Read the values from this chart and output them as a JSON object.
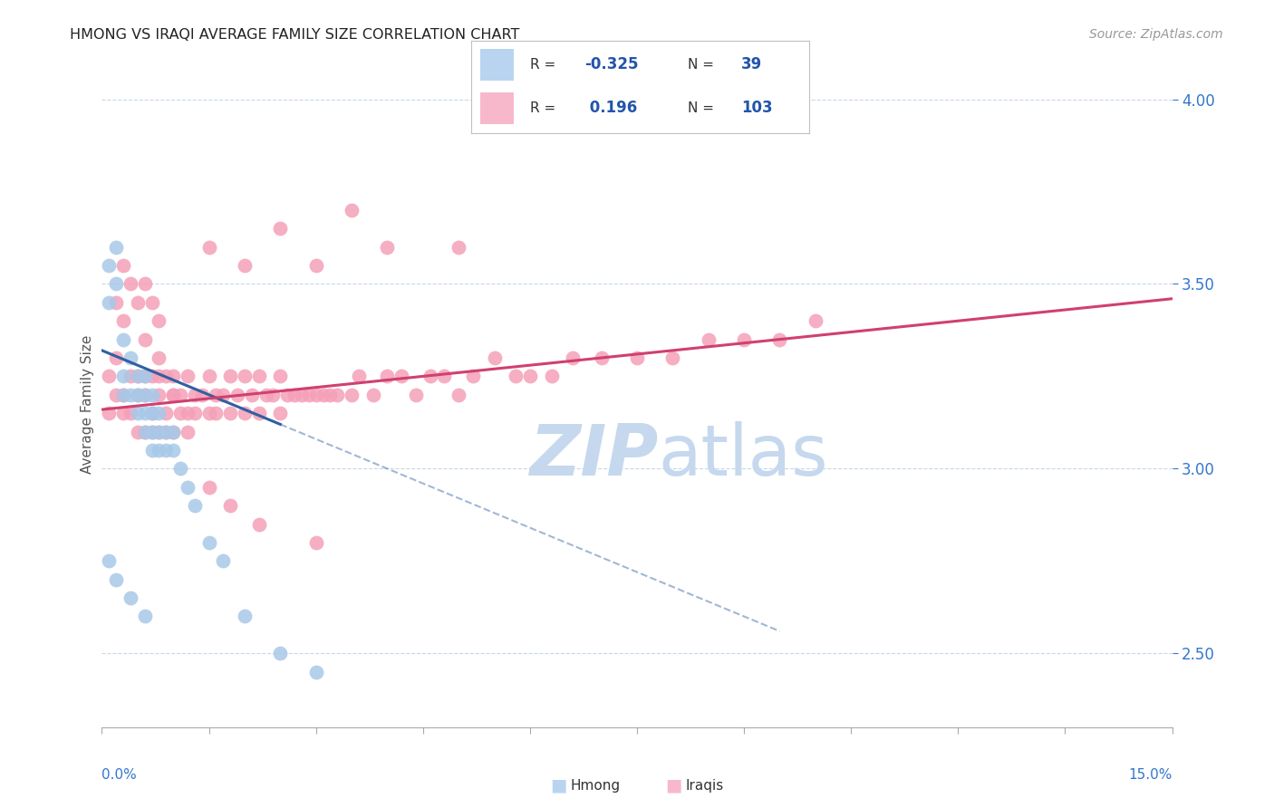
{
  "title": "HMONG VS IRAQI AVERAGE FAMILY SIZE CORRELATION CHART",
  "source": "Source: ZipAtlas.com",
  "ylabel": "Average Family Size",
  "right_yticks": [
    2.5,
    3.0,
    3.5,
    4.0
  ],
  "xmin": 0.0,
  "xmax": 0.15,
  "ymin": 2.3,
  "ymax": 4.05,
  "hmong_color": "#a8c8e8",
  "iraqi_color": "#f4a0b8",
  "hmong_line_color": "#3060a0",
  "iraqi_line_color": "#d04070",
  "legend_box_hmong": "#b8d4f0",
  "legend_box_iraqi": "#f8b8cc",
  "watermark_color": "#c5d8ee",
  "hmong_line_x0": 0.0,
  "hmong_line_y0": 3.32,
  "hmong_line_x1": 0.025,
  "hmong_line_y1": 3.12,
  "hmong_line_solid_end": 0.025,
  "hmong_line_dash_end": 0.095,
  "iraqi_line_x0": 0.0,
  "iraqi_line_y0": 3.16,
  "iraqi_line_x1": 0.15,
  "iraqi_line_y1": 3.46,
  "hmong_x": [
    0.001,
    0.001,
    0.002,
    0.002,
    0.003,
    0.003,
    0.003,
    0.004,
    0.004,
    0.005,
    0.005,
    0.005,
    0.006,
    0.006,
    0.006,
    0.006,
    0.007,
    0.007,
    0.007,
    0.007,
    0.008,
    0.008,
    0.008,
    0.009,
    0.009,
    0.01,
    0.01,
    0.011,
    0.012,
    0.013,
    0.015,
    0.017,
    0.02,
    0.025,
    0.03,
    0.001,
    0.002,
    0.004,
    0.006
  ],
  "hmong_y": [
    3.55,
    3.45,
    3.6,
    3.5,
    3.35,
    3.25,
    3.2,
    3.3,
    3.2,
    3.25,
    3.15,
    3.2,
    3.25,
    3.2,
    3.15,
    3.1,
    3.2,
    3.15,
    3.1,
    3.05,
    3.15,
    3.1,
    3.05,
    3.1,
    3.05,
    3.1,
    3.05,
    3.0,
    2.95,
    2.9,
    2.8,
    2.75,
    2.6,
    2.5,
    2.45,
    2.75,
    2.7,
    2.65,
    2.6
  ],
  "iraqi_x": [
    0.001,
    0.001,
    0.002,
    0.002,
    0.003,
    0.003,
    0.004,
    0.004,
    0.005,
    0.005,
    0.005,
    0.006,
    0.006,
    0.006,
    0.007,
    0.007,
    0.007,
    0.008,
    0.008,
    0.008,
    0.009,
    0.009,
    0.009,
    0.01,
    0.01,
    0.01,
    0.011,
    0.011,
    0.012,
    0.012,
    0.013,
    0.013,
    0.014,
    0.015,
    0.015,
    0.016,
    0.016,
    0.017,
    0.018,
    0.018,
    0.019,
    0.02,
    0.02,
    0.021,
    0.022,
    0.022,
    0.023,
    0.024,
    0.025,
    0.025,
    0.026,
    0.027,
    0.028,
    0.029,
    0.03,
    0.031,
    0.032,
    0.033,
    0.035,
    0.036,
    0.038,
    0.04,
    0.042,
    0.044,
    0.046,
    0.048,
    0.05,
    0.052,
    0.055,
    0.058,
    0.06,
    0.063,
    0.066,
    0.07,
    0.075,
    0.08,
    0.085,
    0.09,
    0.095,
    0.1,
    0.003,
    0.004,
    0.005,
    0.006,
    0.007,
    0.008,
    0.02,
    0.03,
    0.04,
    0.05,
    0.015,
    0.025,
    0.035,
    0.002,
    0.003,
    0.006,
    0.008,
    0.01,
    0.012,
    0.015,
    0.018,
    0.022,
    0.03
  ],
  "iraqi_y": [
    3.25,
    3.15,
    3.2,
    3.3,
    3.2,
    3.15,
    3.25,
    3.15,
    3.25,
    3.2,
    3.1,
    3.25,
    3.2,
    3.1,
    3.25,
    3.15,
    3.1,
    3.25,
    3.2,
    3.1,
    3.25,
    3.15,
    3.1,
    3.25,
    3.2,
    3.1,
    3.2,
    3.15,
    3.25,
    3.15,
    3.2,
    3.15,
    3.2,
    3.25,
    3.15,
    3.2,
    3.15,
    3.2,
    3.25,
    3.15,
    3.2,
    3.25,
    3.15,
    3.2,
    3.25,
    3.15,
    3.2,
    3.2,
    3.25,
    3.15,
    3.2,
    3.2,
    3.2,
    3.2,
    3.2,
    3.2,
    3.2,
    3.2,
    3.2,
    3.25,
    3.2,
    3.25,
    3.25,
    3.2,
    3.25,
    3.25,
    3.2,
    3.25,
    3.3,
    3.25,
    3.25,
    3.25,
    3.3,
    3.3,
    3.3,
    3.3,
    3.35,
    3.35,
    3.35,
    3.4,
    3.55,
    3.5,
    3.45,
    3.5,
    3.45,
    3.4,
    3.55,
    3.55,
    3.6,
    3.6,
    3.6,
    3.65,
    3.7,
    3.45,
    3.4,
    3.35,
    3.3,
    3.2,
    3.1,
    2.95,
    2.9,
    2.85,
    2.8
  ]
}
